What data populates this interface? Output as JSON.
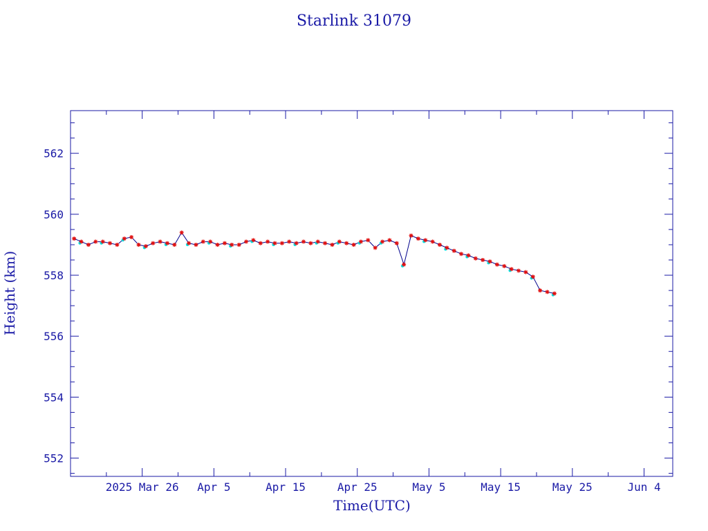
{
  "chart_data": {
    "type": "line",
    "title": "Starlink 31079",
    "xlabel": "Time(UTC)",
    "ylabel": "Height (km)",
    "x_ticks": [
      "2025 Mar 26",
      "Apr  5",
      "Apr 15",
      "Apr 25",
      "May  5",
      "May 15",
      "May 25",
      "Jun  4"
    ],
    "x_tick_dates": [
      "2025-03-26",
      "2025-04-05",
      "2025-04-15",
      "2025-04-25",
      "2025-05-05",
      "2025-05-15",
      "2025-05-25",
      "2025-06-04"
    ],
    "xlim": [
      "2025-03-16",
      "2025-06-08"
    ],
    "y_ticks": [
      552,
      554,
      556,
      558,
      560,
      562
    ],
    "ylim": [
      551.4,
      563.4
    ],
    "grid": false,
    "colors": {
      "frame": "#1a1aa6",
      "line": "#00008b",
      "marker_red": "#e01010",
      "marker_cyan": "#00e5e5"
    },
    "series": [
      {
        "x": [
          "2025-03-16",
          "2025-03-17",
          "2025-03-18",
          "2025-03-19",
          "2025-03-20",
          "2025-03-21",
          "2025-03-22",
          "2025-03-23",
          "2025-03-24",
          "2025-03-25",
          "2025-03-26",
          "2025-03-27",
          "2025-03-28",
          "2025-03-29",
          "2025-03-30",
          "2025-03-31",
          "2025-04-01",
          "2025-04-02",
          "2025-04-03",
          "2025-04-04",
          "2025-04-05",
          "2025-04-06",
          "2025-04-07",
          "2025-04-08",
          "2025-04-09",
          "2025-04-10",
          "2025-04-11",
          "2025-04-12",
          "2025-04-13",
          "2025-04-14",
          "2025-04-15",
          "2025-04-16",
          "2025-04-17",
          "2025-04-18",
          "2025-04-19",
          "2025-04-20",
          "2025-04-21",
          "2025-04-22",
          "2025-04-23",
          "2025-04-24",
          "2025-04-25",
          "2025-04-26",
          "2025-04-27",
          "2025-04-28",
          "2025-04-29",
          "2025-04-30",
          "2025-05-01",
          "2025-05-02",
          "2025-05-03",
          "2025-05-04",
          "2025-05-05",
          "2025-05-06",
          "2025-05-07",
          "2025-05-08",
          "2025-05-09",
          "2025-05-10",
          "2025-05-11",
          "2025-05-12",
          "2025-05-13",
          "2025-05-14",
          "2025-05-15",
          "2025-05-16",
          "2025-05-17",
          "2025-05-18",
          "2025-05-19",
          "2025-05-20",
          "2025-05-21",
          "2025-05-22"
        ],
        "values": [
          559.2,
          559.1,
          559.0,
          559.1,
          559.1,
          559.05,
          559.0,
          559.2,
          559.25,
          559.0,
          558.95,
          559.05,
          559.1,
          559.05,
          559.0,
          559.4,
          559.05,
          559.0,
          559.1,
          559.1,
          559.0,
          559.05,
          559.0,
          559.0,
          559.1,
          559.15,
          559.05,
          559.1,
          559.05,
          559.05,
          559.1,
          559.05,
          559.1,
          559.05,
          559.1,
          559.05,
          559.0,
          559.1,
          559.05,
          559.0,
          559.1,
          559.15,
          558.9,
          559.1,
          559.15,
          559.05,
          558.35,
          559.3,
          559.2,
          559.15,
          559.1,
          559.0,
          558.9,
          558.8,
          558.7,
          558.65,
          558.55,
          558.5,
          558.45,
          558.35,
          558.3,
          558.2,
          558.15,
          558.1,
          557.95,
          557.5,
          557.45,
          557.4
        ],
        "red_markers": true,
        "cyan_markers": true
      }
    ]
  }
}
